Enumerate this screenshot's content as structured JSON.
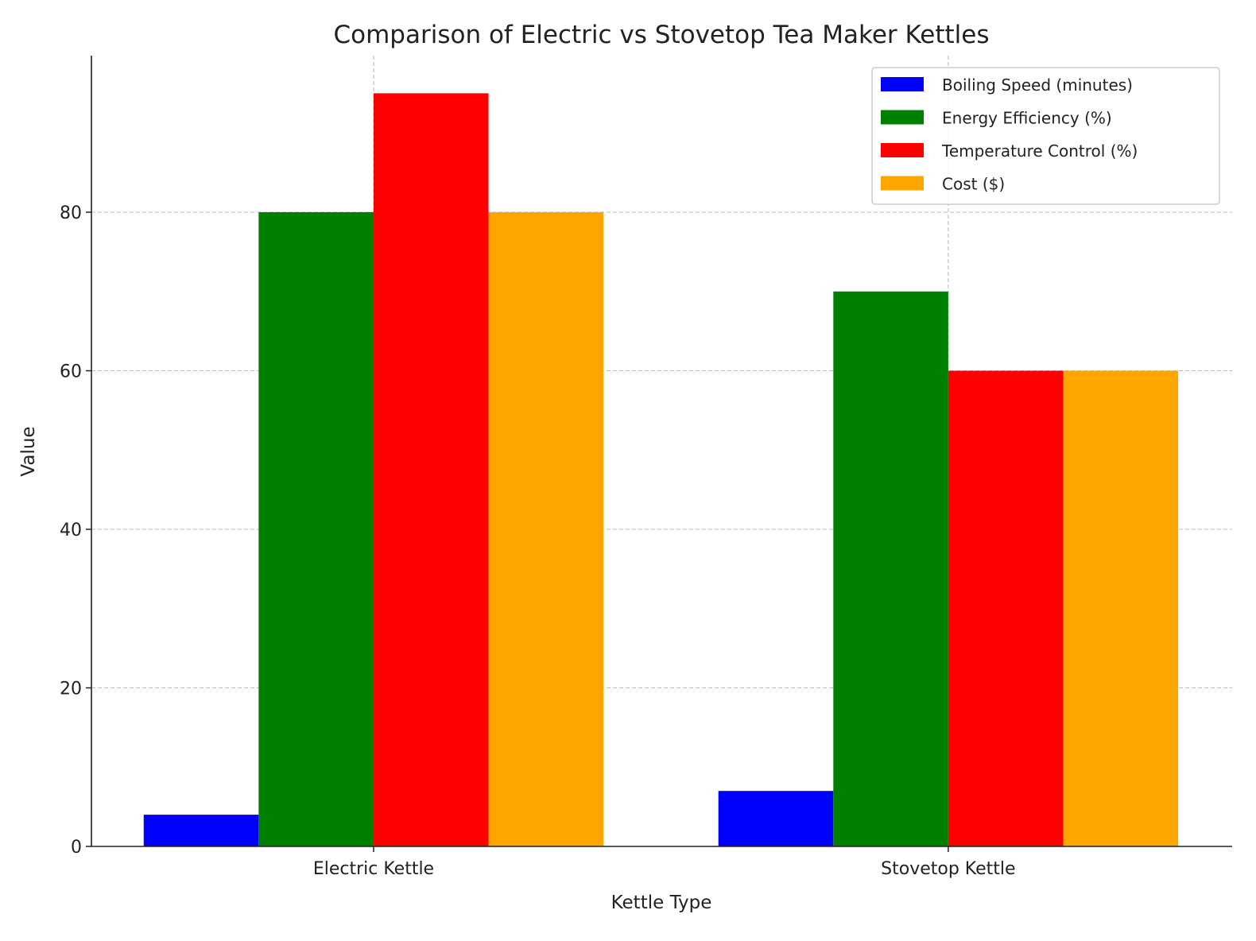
{
  "chart_data": {
    "type": "bar",
    "title": "Comparison of Electric vs Stovetop Tea Maker Kettles",
    "xlabel": "Kettle Type",
    "ylabel": "Value",
    "categories": [
      "Electric Kettle",
      "Stovetop Kettle"
    ],
    "series": [
      {
        "name": "Boiling Speed (minutes)",
        "color": "#0000ff",
        "values": [
          4,
          7
        ]
      },
      {
        "name": "Energy Efficiency (%)",
        "color": "#008000",
        "values": [
          80,
          70
        ]
      },
      {
        "name": "Temperature Control (%)",
        "color": "#ff0000",
        "values": [
          95,
          60
        ]
      },
      {
        "name": "Cost ($)",
        "color": "#ffa500",
        "values": [
          80,
          60
        ]
      }
    ],
    "ylim": [
      0,
      99.75
    ],
    "yticks": [
      0,
      20,
      40,
      60,
      80
    ],
    "grid": true,
    "legend": "top-right"
  }
}
